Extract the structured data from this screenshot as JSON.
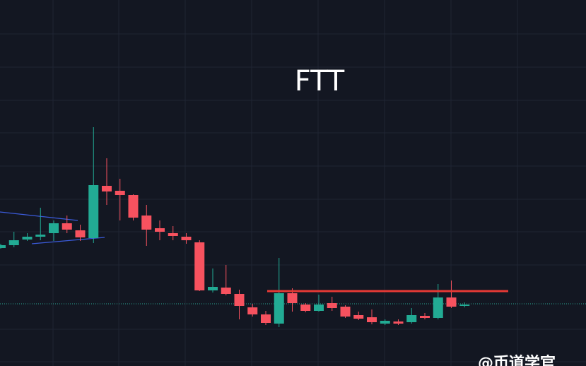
{
  "chart_data": {
    "type": "candlestick",
    "title": "FTT",
    "watermark": "@币道学官",
    "up_color": "#22ab94",
    "down_color": "#f7525f",
    "ylim": [
      0,
      518
    ],
    "open": [
      167,
      171,
      179,
      183,
      188,
      202,
      192,
      181,
      255,
      248,
      242,
      213,
      195,
      188,
      183,
      175,
      107,
      111,
      102,
      83,
      73,
      60,
      103,
      87,
      78,
      89,
      84,
      72,
      69,
      60,
      63,
      62,
      71,
      68,
      97,
      85
    ],
    "high": [
      173,
      190,
      188,
      224,
      206,
      213,
      200,
      338,
      294,
      265,
      243,
      228,
      206,
      198,
      188,
      178,
      138,
      143,
      108,
      88,
      78,
      153,
      110,
      89,
      101,
      98,
      86,
      77,
      80,
      66,
      66,
      82,
      75,
      116,
      121,
      90
    ],
    "low": [
      166,
      168,
      177,
      178,
      177,
      188,
      177,
      174,
      228,
      206,
      206,
      170,
      178,
      178,
      173,
      106,
      104,
      100,
      66,
      70,
      58,
      55,
      77,
      76,
      77,
      78,
      68,
      65,
      59,
      58,
      58,
      60,
      66,
      66,
      82,
      83
    ],
    "close": [
      171,
      178,
      183,
      186,
      202,
      193,
      182,
      256,
      247,
      242,
      210,
      193,
      190,
      184,
      178,
      107,
      112,
      102,
      85,
      73,
      61,
      103,
      89,
      78,
      87,
      82,
      70,
      67,
      62,
      64,
      60,
      72,
      68,
      97,
      84,
      87
    ]
  }
}
